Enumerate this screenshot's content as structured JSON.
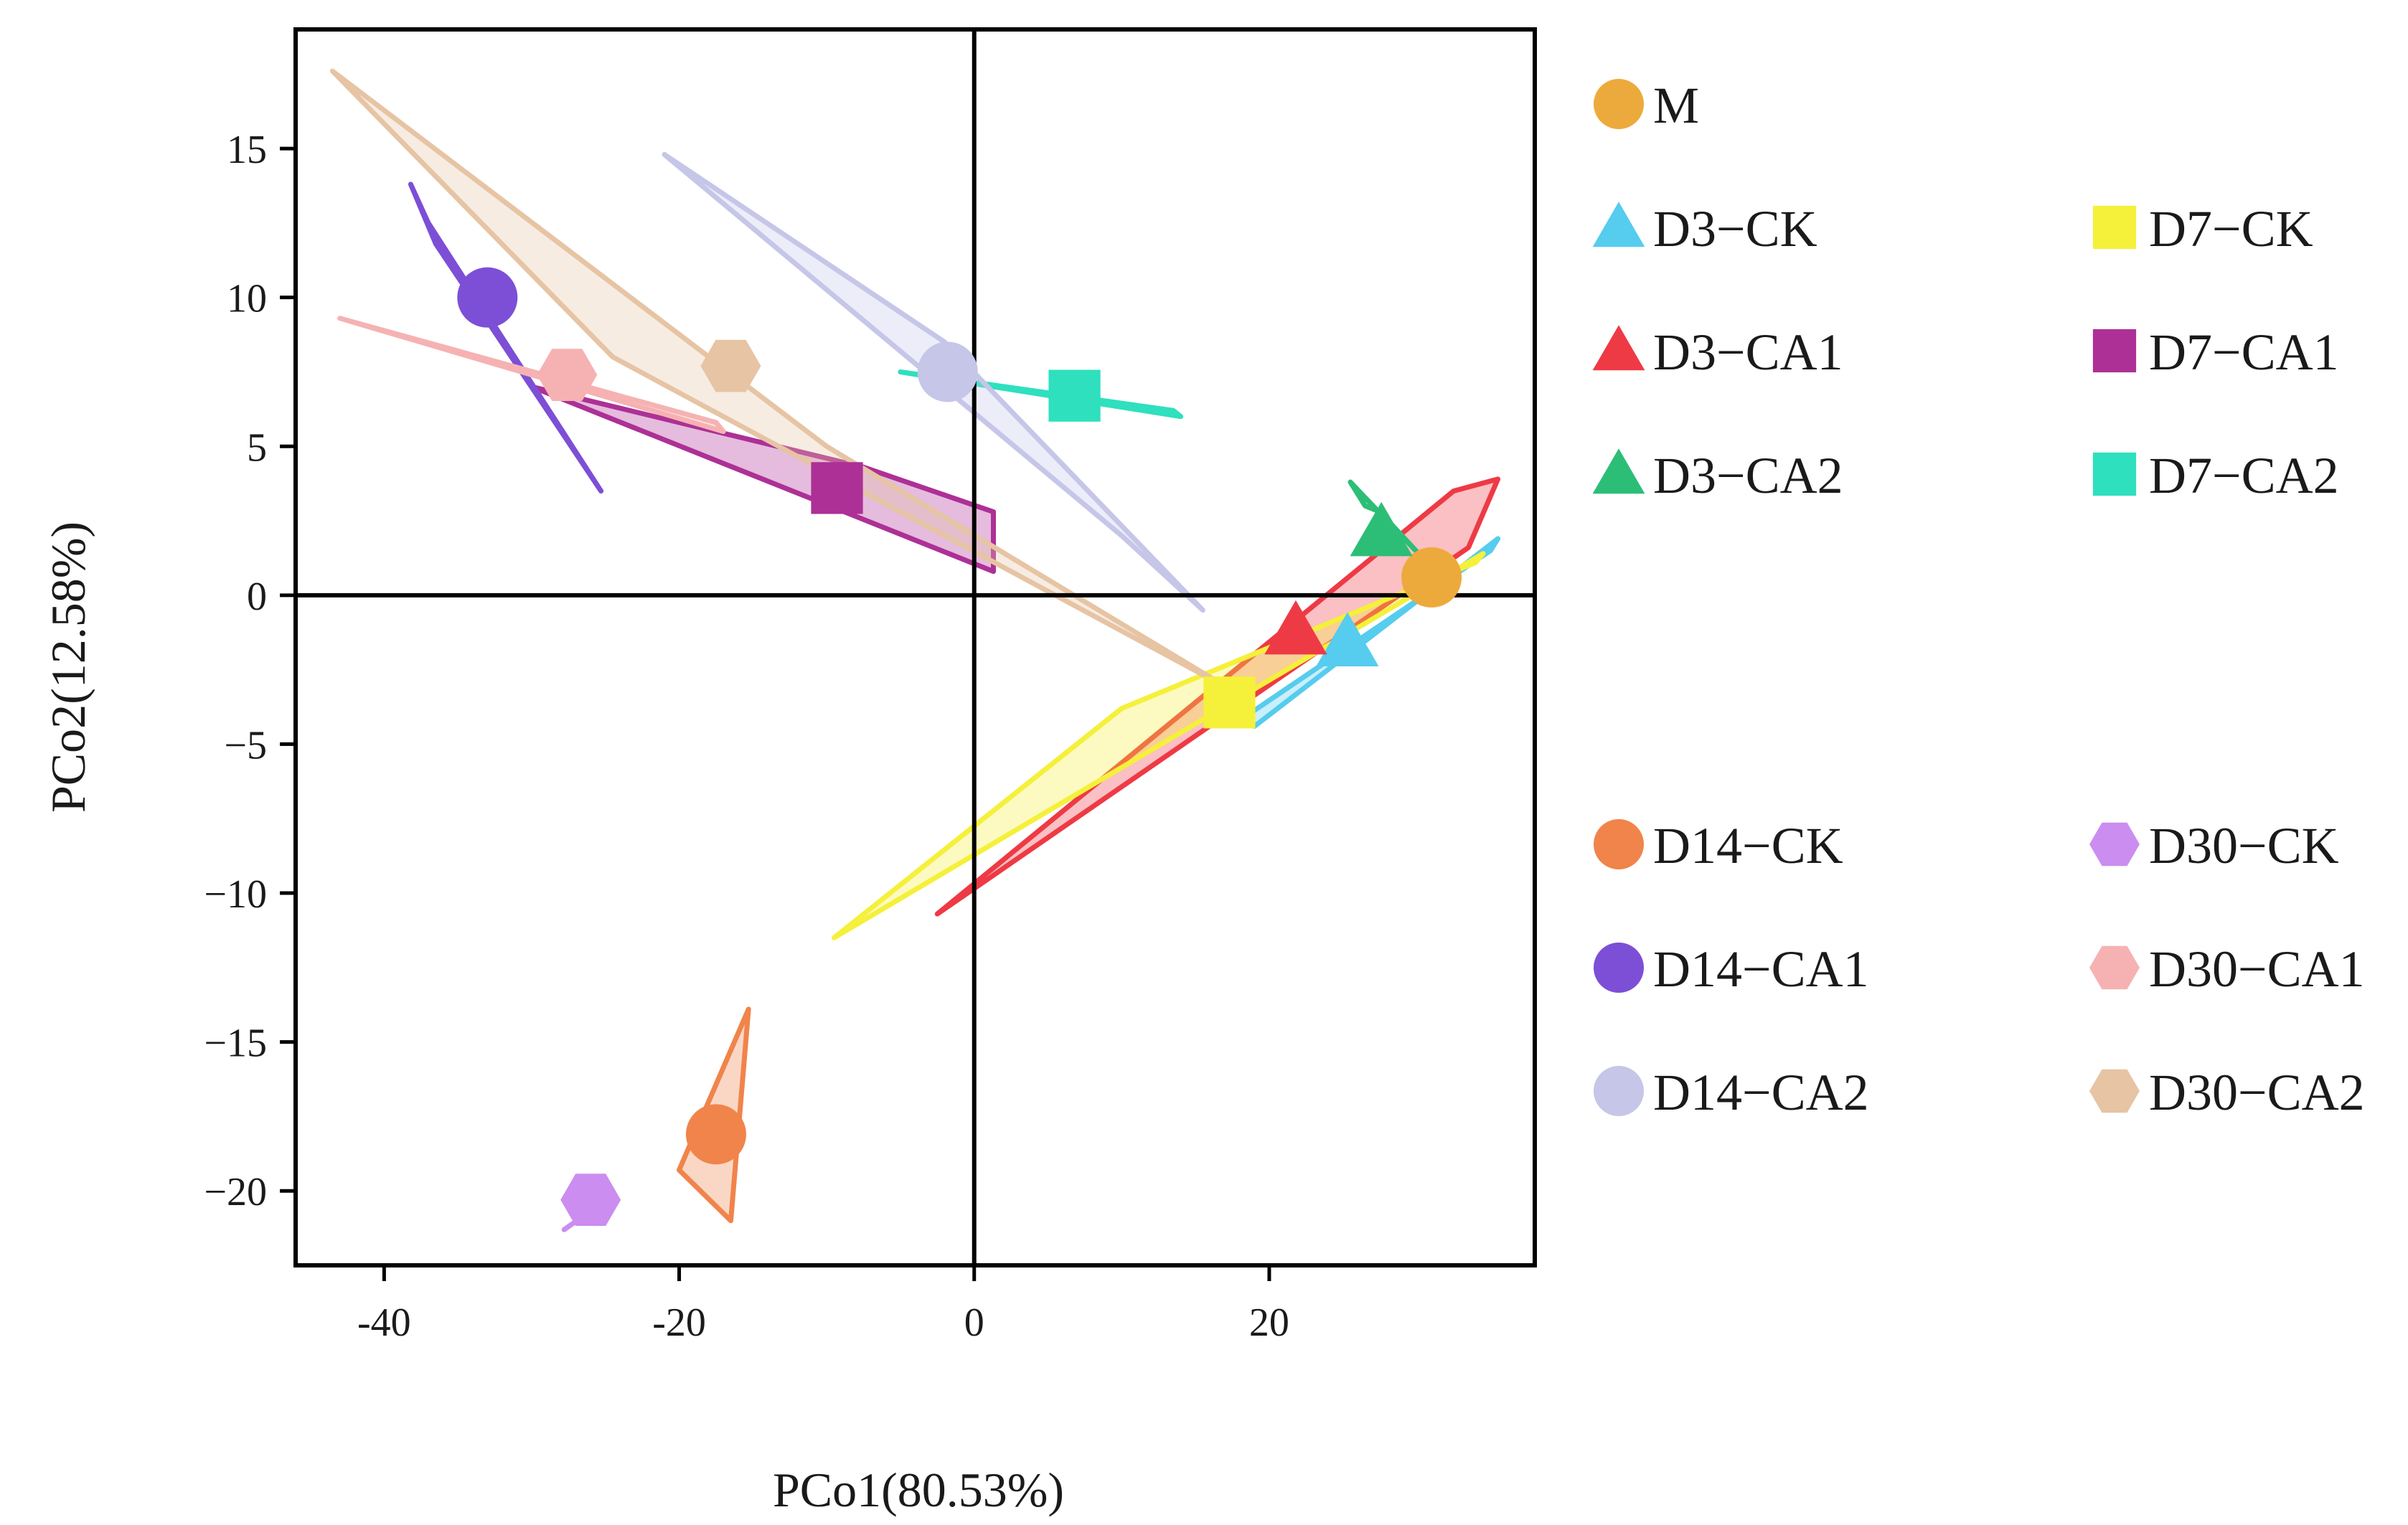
{
  "chart_data": {
    "type": "scatter",
    "title": "",
    "xlabel": "PCo1(80.53%)",
    "ylabel": "PCo2(12.58%)",
    "xlim": [
      -46,
      38
    ],
    "ylim": [
      -22.5,
      19
    ],
    "xticks": [
      -40,
      -20,
      0,
      20
    ],
    "xtick_labels": [
      "-40",
      "-20",
      "0",
      "20"
    ],
    "yticks": [
      15,
      10,
      5,
      0,
      -5,
      -10,
      -15,
      -20
    ],
    "ytick_labels": [
      "15",
      "10",
      "5",
      "0",
      "−5",
      "−10",
      "−15",
      "−20"
    ],
    "reference_lines": {
      "x": 0,
      "y": 0
    },
    "grid": false,
    "legend_position": "right",
    "series": [
      {
        "name": "M",
        "marker": "circle",
        "color": "#EDAA3C",
        "centroid": [
          31,
          0.6
        ],
        "hull": []
      },
      {
        "name": "D3−CK",
        "marker": "triangle",
        "color": "#56CCEE",
        "centroid": [
          25.3,
          -1.6
        ],
        "hull": [
          [
            19,
            -4.4
          ],
          [
            35.5,
            1.9
          ],
          [
            35,
            1.5
          ],
          [
            18.6,
            -4
          ]
        ]
      },
      {
        "name": "D3−CA1",
        "marker": "triangle",
        "color": "#EE3A45",
        "centroid": [
          21.8,
          -1.2
        ],
        "hull": [
          [
            -2.5,
            -10.7
          ],
          [
            32.5,
            3.5
          ],
          [
            35.5,
            3.9
          ],
          [
            33.5,
            1.6
          ]
        ]
      },
      {
        "name": "D3−CA2",
        "marker": "triangle",
        "color": "#2CBE76",
        "centroid": [
          27.6,
          2.1
        ],
        "hull": [
          [
            25.5,
            3.8
          ],
          [
            30.5,
            1.2
          ],
          [
            27.5,
            2.8
          ],
          [
            26.5,
            3
          ]
        ]
      },
      {
        "name": "D7−CK",
        "marker": "square",
        "color": "#F5F03A",
        "centroid": [
          17.3,
          -3.6
        ],
        "hull": [
          [
            -9.5,
            -11.5
          ],
          [
            34.5,
            1.4
          ],
          [
            34,
            1.1
          ],
          [
            10,
            -3.8
          ]
        ]
      },
      {
        "name": "D7−CA1",
        "marker": "square",
        "color": "#AD3096",
        "centroid": [
          -9.3,
          3.6
        ],
        "hull": [
          [
            -30,
            7
          ],
          [
            -7.5,
            4.3
          ],
          [
            1.3,
            2.8
          ],
          [
            1.3,
            0.8
          ]
        ]
      },
      {
        "name": "D7−CA2",
        "marker": "square",
        "color": "#2EE0BD",
        "centroid": [
          6.8,
          6.7
        ],
        "hull": [
          [
            -5,
            7.5
          ],
          [
            14,
            6
          ],
          [
            13.5,
            6.2
          ]
        ]
      },
      {
        "name": "D14−CK",
        "marker": "circle",
        "color": "#F0844B",
        "centroid": [
          -17.5,
          -18.1
        ],
        "hull": [
          [
            -20,
            -19.3
          ],
          [
            -15.3,
            -13.9
          ],
          [
            -16.5,
            -21
          ]
        ]
      },
      {
        "name": "D14−CA1",
        "marker": "circle",
        "color": "#7C4FD6",
        "centroid": [
          -33,
          10
        ],
        "hull": [
          [
            -38.2,
            13.8
          ],
          [
            -37,
            12.5
          ],
          [
            -25.3,
            3.5
          ],
          [
            -36.5,
            11.8
          ]
        ]
      },
      {
        "name": "D14−CA2",
        "marker": "circle",
        "color": "#C5C6E8",
        "centroid": [
          -1.8,
          7.5
        ],
        "hull": [
          [
            -21,
            14.8
          ],
          [
            -2,
            8.5
          ],
          [
            15.5,
            -0.5
          ],
          [
            10,
            2
          ]
        ]
      },
      {
        "name": "D30−CK",
        "marker": "hexagon",
        "color": "#CB8DF0",
        "centroid": [
          -26,
          -20.3
        ],
        "hull": [
          [
            -27.8,
            -21.3
          ],
          [
            -25.5,
            -20.5
          ]
        ]
      },
      {
        "name": "D30−CA1",
        "marker": "hexagon",
        "color": "#F6B2B2",
        "centroid": [
          -27.6,
          7.4
        ],
        "hull": [
          [
            -43,
            9.3
          ],
          [
            -17,
            5.5
          ],
          [
            -17.5,
            5.8
          ]
        ]
      },
      {
        "name": "D30−CA2",
        "marker": "hexagon",
        "color": "#E6C4A4",
        "centroid": [
          -16.5,
          7.7
        ],
        "hull": [
          [
            -43.5,
            17.6
          ],
          [
            -24.5,
            8
          ],
          [
            17.5,
            -3.2
          ],
          [
            -10,
            5
          ]
        ]
      }
    ]
  }
}
